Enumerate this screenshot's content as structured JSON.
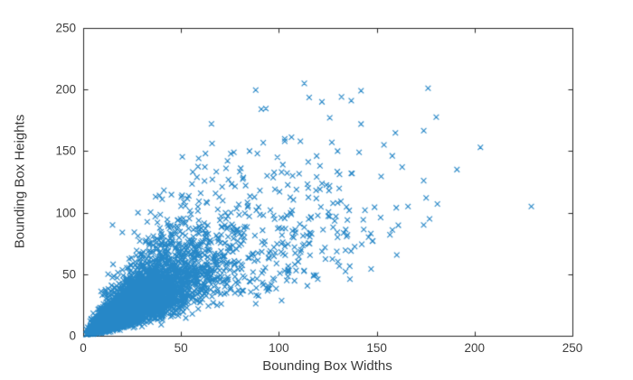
{
  "figure": {
    "background": "#ffffff"
  },
  "chart_data": {
    "type": "scatter",
    "title": "",
    "xlabel": "Bounding Box Widths",
    "ylabel": "Bounding Box Heights",
    "xlim": [
      0,
      250
    ],
    "ylim": [
      0,
      250
    ],
    "x_ticks": [
      0,
      50,
      100,
      150,
      200,
      250
    ],
    "y_ticks": [
      0,
      50,
      100,
      150,
      200,
      250
    ],
    "grid": false,
    "legend": null,
    "box": true,
    "tick_direction": "in",
    "marker": {
      "shape": "x",
      "color": "#0072BD",
      "size": 6,
      "alpha": 0.85
    },
    "axis_color": "#262626",
    "tick_label_color": "#3d3d3d",
    "label_color": "#3a3a3a",
    "description": "Dense fan-shaped scatter of several thousand bounding-box width/height pairs radiating from the origin; solid core roughly widths 2-110 and heights 2-90, sparse tail to widths ~230 and heights ~205.",
    "generator": {
      "seed": 42,
      "w_clip": [
        1.5,
        238
      ],
      "h_clip": [
        1,
        205
      ],
      "components": [
        {
          "n": 3800,
          "logw_mu": 3.3,
          "logw_sigma": 0.55,
          "loga_mu": -0.1,
          "loga_sigma": 0.4
        },
        {
          "n": 1300,
          "logw_mu": 2.35,
          "logw_sigma": 0.65,
          "loga_mu": -0.05,
          "loga_sigma": 0.5
        },
        {
          "n": 130,
          "logw_mu": 4.745,
          "logw_sigma": 0.14,
          "loga_mu": -0.45,
          "loga_sigma": 0.35
        },
        {
          "n": 45,
          "logw_mu": 3.9,
          "logw_sigma": 0.35,
          "loga_mu": 0.4,
          "loga_sigma": 0.22
        }
      ]
    },
    "outlier_points": [
      [
        113,
        205
      ],
      [
        122,
        190
      ],
      [
        132,
        194
      ],
      [
        137,
        191
      ],
      [
        142,
        199
      ],
      [
        126,
        177
      ],
      [
        142,
        172
      ],
      [
        103,
        160
      ],
      [
        130,
        150
      ],
      [
        141,
        149
      ],
      [
        91,
        184
      ],
      [
        103,
        158
      ],
      [
        77,
        149
      ],
      [
        85,
        150
      ],
      [
        89,
        148
      ],
      [
        59,
        144
      ],
      [
        56,
        133
      ],
      [
        73,
        136
      ],
      [
        66,
        127
      ],
      [
        71,
        121
      ],
      [
        83,
        122
      ],
      [
        94,
        130
      ],
      [
        107,
        130
      ],
      [
        98,
        119
      ],
      [
        39,
        114
      ],
      [
        203,
        153
      ],
      [
        163,
        137
      ],
      [
        191,
        135
      ],
      [
        174,
        126
      ],
      [
        160,
        104
      ],
      [
        166,
        105
      ],
      [
        181,
        107
      ],
      [
        229,
        105
      ],
      [
        177,
        95
      ],
      [
        174,
        90
      ],
      [
        28,
        100
      ],
      [
        20,
        84
      ],
      [
        28,
        81
      ],
      [
        131,
        131
      ],
      [
        137,
        132
      ],
      [
        121,
        138
      ],
      [
        115,
        120
      ],
      [
        119,
        118
      ],
      [
        130,
        108
      ],
      [
        126,
        97
      ],
      [
        147,
        83
      ],
      [
        148,
        77
      ],
      [
        130,
        80
      ],
      [
        144,
        102
      ],
      [
        152,
        96
      ],
      [
        158,
        86
      ],
      [
        102,
        139
      ],
      [
        111,
        158
      ],
      [
        135,
        94
      ],
      [
        15,
        90
      ]
    ]
  }
}
